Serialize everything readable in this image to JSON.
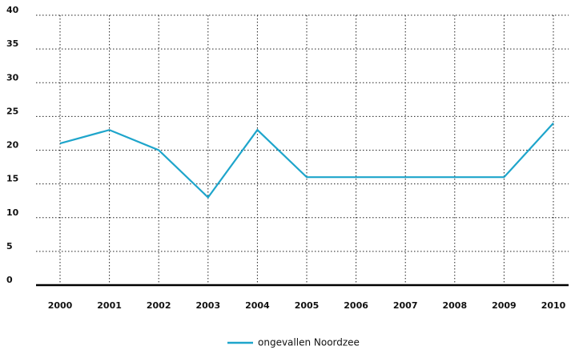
{
  "chart_data": {
    "type": "line",
    "categories": [
      "2000",
      "2001",
      "2002",
      "2003",
      "2004",
      "2005",
      "2006",
      "2007",
      "2008",
      "2009",
      "2010"
    ],
    "series": [
      {
        "name": "ongevallen Noordzee",
        "color": "#1ea5cb",
        "values": [
          21,
          23,
          20,
          13,
          23,
          16,
          16,
          16,
          16,
          16,
          24
        ]
      }
    ],
    "ylim": [
      0,
      40
    ],
    "yticks": [
      0,
      5,
      10,
      15,
      20,
      25,
      30,
      35,
      40
    ],
    "grid": true,
    "legend": "bottom"
  }
}
